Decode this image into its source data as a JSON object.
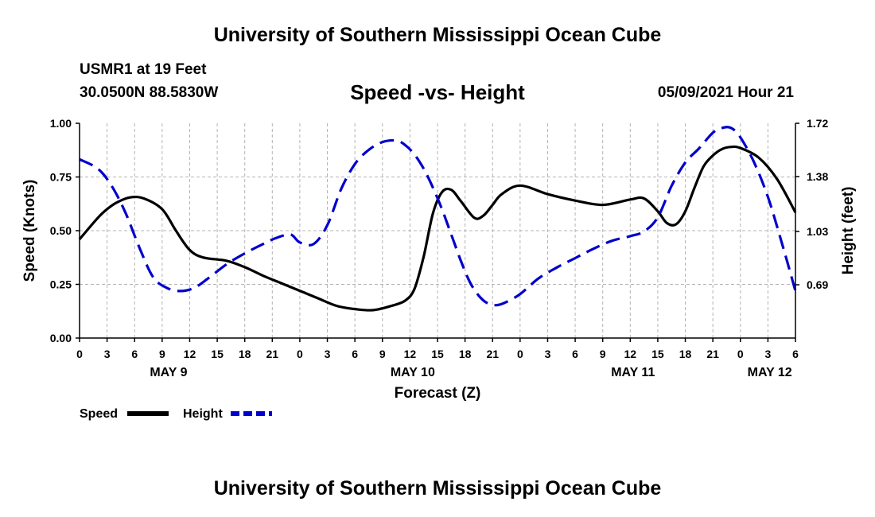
{
  "header": {
    "title_top": "University of Southern Mississippi Ocean Cube",
    "station": "USMR1 at 19 Feet",
    "coords": "30.0500N  88.5830W",
    "datetime": "05/09/2021 Hour 21",
    "title_bottom": "University of Southern Mississippi Ocean Cube"
  },
  "chart_data": {
    "type": "line",
    "title": "Speed -vs- Height",
    "xlabel": "Forecast (Z)",
    "ylabel": "Speed (Knots)",
    "ylabel_right": "Height (feet)",
    "xlim": [
      0,
      78
    ],
    "ylim": [
      0,
      1.0
    ],
    "ylim_right": [
      0.35,
      1.72
    ],
    "y_ticks": [
      "0.00",
      "0.25",
      "0.50",
      "0.75",
      "1.00"
    ],
    "y_right_ticks": [
      "0.69",
      "1.03",
      "1.38",
      "1.72"
    ],
    "x_ticks": [
      {
        "h": 0,
        "label": "0"
      },
      {
        "h": 3,
        "label": "3"
      },
      {
        "h": 6,
        "label": "6"
      },
      {
        "h": 9,
        "label": "9"
      },
      {
        "h": 12,
        "label": "12"
      },
      {
        "h": 15,
        "label": "15"
      },
      {
        "h": 18,
        "label": "18"
      },
      {
        "h": 21,
        "label": "21"
      },
      {
        "h": 24,
        "label": "0"
      },
      {
        "h": 27,
        "label": "3"
      },
      {
        "h": 30,
        "label": "6"
      },
      {
        "h": 33,
        "label": "9"
      },
      {
        "h": 36,
        "label": "12"
      },
      {
        "h": 39,
        "label": "15"
      },
      {
        "h": 42,
        "label": "18"
      },
      {
        "h": 45,
        "label": "21"
      },
      {
        "h": 48,
        "label": "0"
      },
      {
        "h": 51,
        "label": "3"
      },
      {
        "h": 54,
        "label": "6"
      },
      {
        "h": 57,
        "label": "9"
      },
      {
        "h": 60,
        "label": "12"
      },
      {
        "h": 63,
        "label": "15"
      },
      {
        "h": 66,
        "label": "18"
      },
      {
        "h": 69,
        "label": "21"
      },
      {
        "h": 72,
        "label": "0"
      },
      {
        "h": 75,
        "label": "3"
      },
      {
        "h": 78,
        "label": "6"
      }
    ],
    "day_labels": [
      {
        "h": 9.7,
        "label": "MAY 9"
      },
      {
        "h": 36.3,
        "label": "MAY 10"
      },
      {
        "h": 60.3,
        "label": "MAY 11"
      },
      {
        "h": 75.2,
        "label": "MAY 12"
      }
    ],
    "series": [
      {
        "name": "Speed",
        "axis": "left",
        "color": "#000000",
        "dashed": false,
        "x": [
          0,
          2,
          3,
          4,
          5.5,
          7,
          9,
          10.5,
          12,
          13.5,
          16,
          18,
          20,
          22,
          24,
          26,
          28,
          30,
          32,
          34,
          35.5,
          36.5,
          37.5,
          38.5,
          39.5,
          40.5,
          41.5,
          43,
          44,
          45,
          46,
          48,
          51,
          54,
          57,
          60,
          61.5,
          63,
          64,
          65,
          66,
          67,
          68,
          69,
          70,
          71,
          72,
          74,
          76,
          78
        ],
        "values": [
          0.46,
          0.56,
          0.6,
          0.63,
          0.655,
          0.65,
          0.6,
          0.5,
          0.41,
          0.375,
          0.36,
          0.33,
          0.29,
          0.255,
          0.22,
          0.185,
          0.15,
          0.135,
          0.13,
          0.15,
          0.175,
          0.23,
          0.38,
          0.58,
          0.68,
          0.69,
          0.64,
          0.56,
          0.57,
          0.62,
          0.67,
          0.71,
          0.67,
          0.64,
          0.62,
          0.645,
          0.65,
          0.59,
          0.535,
          0.53,
          0.59,
          0.7,
          0.8,
          0.85,
          0.88,
          0.89,
          0.885,
          0.84,
          0.74,
          0.585
        ]
      },
      {
        "name": "Height",
        "axis": "right",
        "color": "#0000cc",
        "dashed": true,
        "x": [
          0,
          2,
          3.5,
          5,
          6.5,
          8,
          9.5,
          11,
          12.5,
          14,
          16,
          18,
          20,
          21.5,
          23,
          24,
          25.5,
          27,
          28.5,
          30,
          31.5,
          33,
          34.5,
          35.5,
          36.5,
          37.5,
          38.5,
          39.5,
          40.5,
          41.5,
          42.5,
          43.5,
          44.5,
          45.5,
          46.5,
          48,
          50,
          52,
          54,
          56,
          58,
          60,
          61.5,
          63,
          64.5,
          66,
          67.5,
          69,
          70,
          71,
          72,
          73.5,
          75,
          76.5,
          78
        ],
        "values": [
          1.49,
          1.43,
          1.32,
          1.15,
          0.93,
          0.74,
          0.67,
          0.65,
          0.67,
          0.73,
          0.82,
          0.89,
          0.95,
          0.99,
          1.01,
          0.96,
          0.95,
          1.07,
          1.3,
          1.46,
          1.55,
          1.6,
          1.61,
          1.58,
          1.52,
          1.43,
          1.31,
          1.17,
          1.01,
          0.85,
          0.71,
          0.62,
          0.57,
          0.56,
          0.58,
          0.63,
          0.73,
          0.8,
          0.86,
          0.92,
          0.97,
          1.0,
          1.03,
          1.12,
          1.32,
          1.47,
          1.56,
          1.66,
          1.69,
          1.69,
          1.63,
          1.47,
          1.25,
          0.96,
          0.65
        ]
      }
    ],
    "legend": [
      {
        "label": "Speed",
        "color": "#000000",
        "dashed": false
      },
      {
        "label": "Height",
        "color": "#0000cc",
        "dashed": true
      }
    ],
    "grid": true
  }
}
